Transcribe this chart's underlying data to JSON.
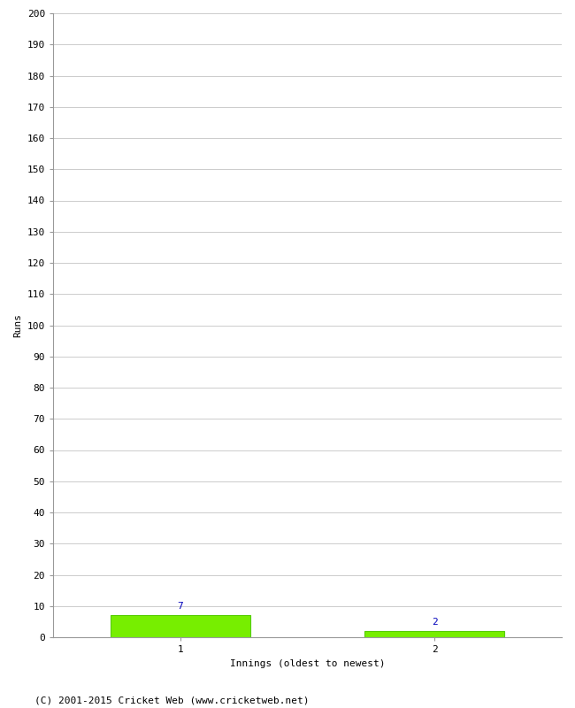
{
  "categories": [
    1,
    2
  ],
  "values": [
    7,
    2
  ],
  "bar_color": "#77ee00",
  "bar_edge_color": "#55cc00",
  "xlabel": "Innings (oldest to newest)",
  "ylabel": "Runs",
  "ylim": [
    0,
    200
  ],
  "value_label_color": "#0000bb",
  "value_label_fontsize": 8,
  "axis_label_fontsize": 8,
  "tick_label_fontsize": 8,
  "footer": "(C) 2001-2015 Cricket Web (www.cricketweb.net)",
  "footer_fontsize": 8,
  "background_color": "#ffffff",
  "grid_color": "#cccccc",
  "bar_width": 0.55,
  "spine_color": "#999999"
}
